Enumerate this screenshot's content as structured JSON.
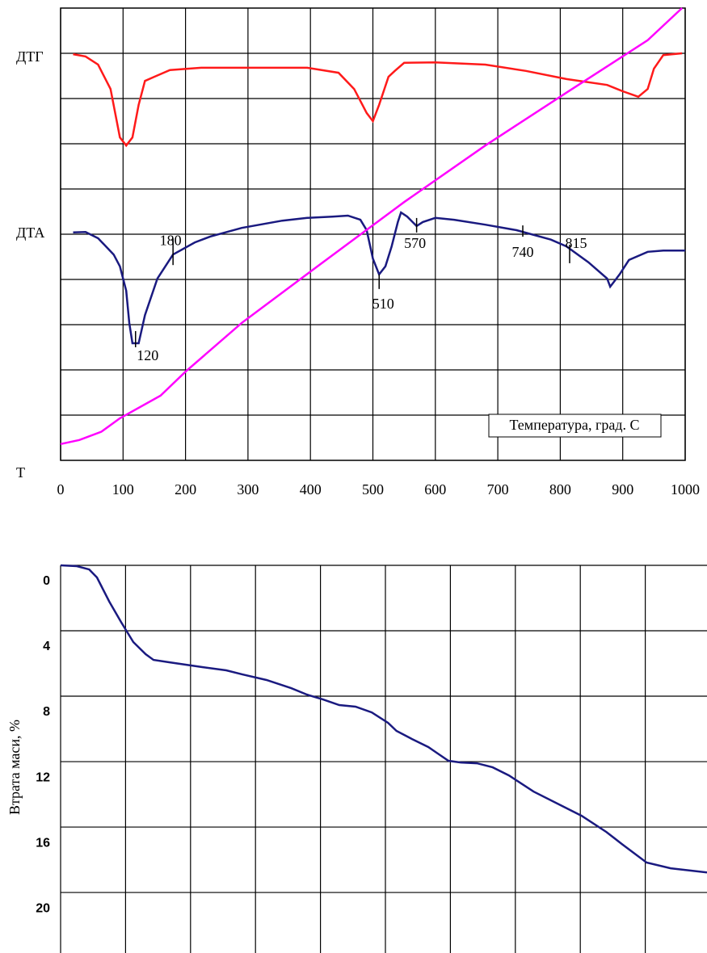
{
  "chart_data": [
    {
      "type": "line",
      "xlim": [
        0,
        1000
      ],
      "xticks": [
        0,
        100,
        200,
        300,
        400,
        500,
        600,
        700,
        800,
        900,
        1000
      ],
      "ylim": [
        0,
        10
      ],
      "grid": true,
      "x_label": "Температура, град. С",
      "series": [
        {
          "name": "ДТГ",
          "color": "#ff1a1a",
          "x": [
            20,
            40,
            60,
            80,
            95,
            105,
            115,
            125,
            135,
            150,
            175,
            225,
            290,
            395,
            445,
            470,
            490,
            500,
            510,
            525,
            535,
            550,
            600,
            680,
            745,
            810,
            875,
            900,
            925,
            940,
            950,
            965,
            995
          ],
          "values": [
            8.98,
            8.93,
            8.75,
            8.21,
            7.14,
            6.96,
            7.14,
            7.86,
            8.39,
            8.48,
            8.63,
            8.68,
            8.68,
            8.68,
            8.57,
            8.21,
            7.68,
            7.5,
            7.86,
            8.48,
            8.61,
            8.79,
            8.8,
            8.75,
            8.61,
            8.43,
            8.3,
            8.16,
            8.04,
            8.21,
            8.66,
            8.96,
            9.0
          ]
        },
        {
          "name": "ДТА",
          "color": "#1a1a80",
          "x": [
            20,
            40,
            60,
            85,
            95,
            105,
            110,
            115,
            125,
            135,
            155,
            180,
            215,
            240,
            290,
            355,
            395,
            435,
            460,
            480,
            490,
            500,
            510,
            520,
            530,
            540,
            545,
            555,
            570,
            580,
            600,
            630,
            680,
            730,
            785,
            810,
            845,
            875,
            880,
            895,
            910,
            940,
            965,
            1000
          ],
          "values": [
            5.04,
            5.05,
            4.91,
            4.55,
            4.29,
            3.75,
            3.04,
            2.59,
            2.59,
            3.21,
            4.02,
            4.55,
            4.82,
            4.95,
            5.14,
            5.3,
            5.36,
            5.39,
            5.41,
            5.32,
            5.09,
            4.46,
            4.11,
            4.29,
            4.73,
            5.27,
            5.48,
            5.39,
            5.18,
            5.27,
            5.36,
            5.32,
            5.21,
            5.09,
            4.88,
            4.73,
            4.38,
            4.02,
            3.84,
            4.11,
            4.43,
            4.61,
            4.64,
            4.64
          ]
        },
        {
          "name": "Т",
          "color": "#ff00ff",
          "x": [
            0,
            30,
            65,
            95,
            160,
            200,
            290,
            420,
            550,
            680,
            810,
            940,
            995
          ],
          "values": [
            0.36,
            0.45,
            0.63,
            0.93,
            1.43,
            1.96,
            3.04,
            4.38,
            5.71,
            6.96,
            8.13,
            9.29,
            10
          ]
        }
      ],
      "annotations": [
        180,
        120,
        510,
        570,
        740,
        815
      ]
    },
    {
      "type": "line",
      "y_label": "Втрата маси, %",
      "xlim": [
        0,
        1000
      ],
      "ylim": [
        0,
        23.7
      ],
      "yticks": [
        0,
        4,
        8,
        12,
        16,
        20
      ],
      "y_inverted": true,
      "grid": true,
      "series": [
        {
          "color": "#1a1a80",
          "x": [
            0,
            25,
            44,
            56,
            75,
            93,
            112,
            131,
            143,
            168,
            218,
            255,
            280,
            317,
            355,
            379,
            404,
            429,
            454,
            479,
            504,
            517,
            541,
            566,
            579,
            597,
            616,
            641,
            665,
            690,
            728,
            765,
            802,
            840,
            864,
            902,
            939,
            995
          ],
          "values": [
            0,
            0.05,
            0.25,
            0.74,
            2.22,
            3.46,
            4.69,
            5.43,
            5.78,
            5.93,
            6.22,
            6.42,
            6.67,
            7.01,
            7.51,
            7.9,
            8.2,
            8.54,
            8.64,
            8.99,
            9.63,
            10.12,
            10.62,
            11.11,
            11.46,
            11.95,
            12.05,
            12.1,
            12.35,
            12.84,
            13.83,
            14.57,
            15.31,
            16.3,
            17.04,
            18.17,
            18.52,
            18.77
          ]
        }
      ]
    }
  ]
}
